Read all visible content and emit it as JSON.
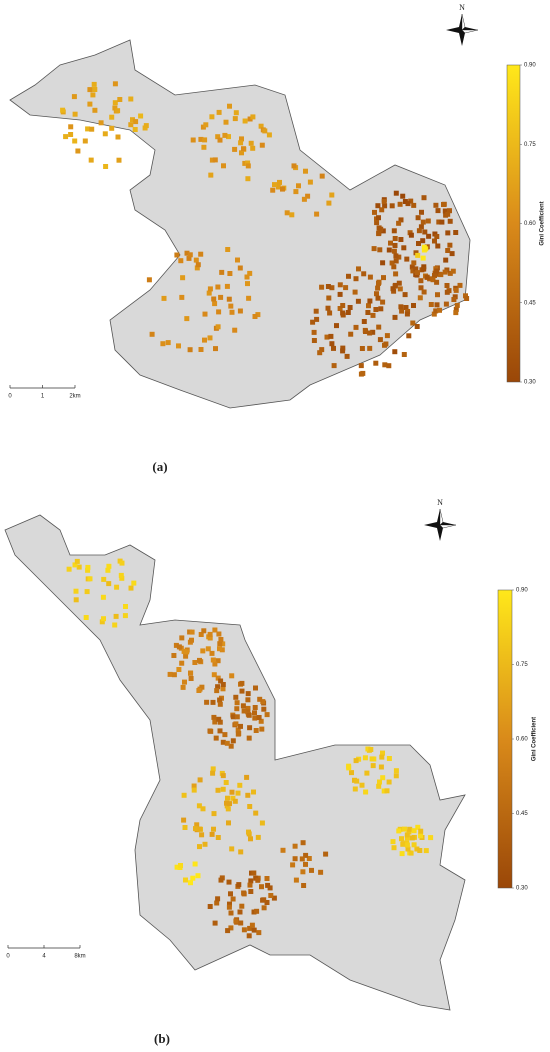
{
  "panels": [
    {
      "north": "N",
      "legend": {
        "title": "Gini Coefficient",
        "lim": [
          0.3,
          0.9
        ],
        "ticks": [
          {
            "value": 0.9,
            "label": "0.90"
          },
          0.75,
          {
            "value": 0.6,
            "label": "0.60"
          },
          0.45,
          {
            "value": 0.3,
            "label": "0.30"
          }
        ],
        "colors": [
          "#9a4708",
          "#d98a1a",
          "#ffe81a"
        ]
      },
      "scale": {
        "lim": [
          0,
          2
        ],
        "ticks": [
          0,
          1,
          {
            "value": 2,
            "label": "2km"
          }
        ]
      },
      "caption": "(a)"
    },
    {
      "north": "N",
      "legend": {
        "title": "Gini Coefficient",
        "lim": [
          0.3,
          0.9
        ],
        "ticks": [
          {
            "value": 0.9,
            "label": "0.90"
          },
          0.75,
          {
            "value": 0.6,
            "label": "0.60"
          },
          0.45,
          {
            "value": 0.3,
            "label": "0.30"
          }
        ],
        "colors": [
          "#9a4708",
          "#d98a1a",
          "#ffe81a"
        ]
      },
      "scale": {
        "lim": [
          0,
          8
        ],
        "ticks": [
          0,
          4,
          {
            "value": 8,
            "label": "8km"
          }
        ]
      },
      "caption": "(b)"
    }
  ]
}
